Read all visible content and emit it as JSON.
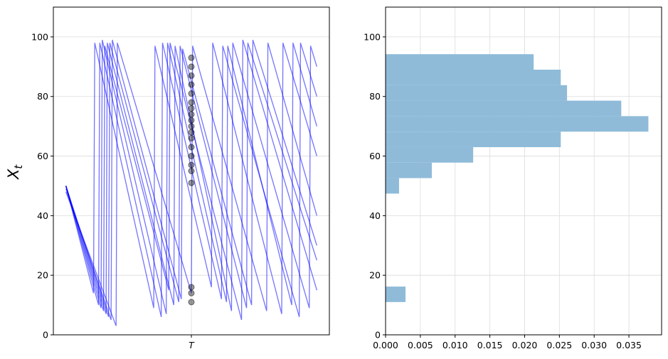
{
  "chart_data": [
    {
      "type": "line",
      "ylabel": "X",
      "ylabel_subscript": "t",
      "xlim": [
        -0.05,
        1.05
      ],
      "xticks": [
        {
          "value": 0.5,
          "label": "T"
        }
      ],
      "ylim": [
        0,
        110
      ],
      "yticks": [
        0,
        20,
        40,
        60,
        80,
        100
      ],
      "grid": true,
      "series": [
        {
          "color": "#0000ff",
          "x": [
            0,
            0.16,
            0.165,
            0.43,
            0.435,
            0.66,
            0.665,
            0.97,
            0.975,
            1.0
          ],
          "values": [
            50,
            7,
            98,
            10,
            97,
            8,
            98,
            9,
            97,
            90
          ]
        },
        {
          "color": "#0000ff",
          "x": [
            0,
            0.13,
            0.135,
            0.38,
            0.385,
            0.62,
            0.625,
            0.93,
            0.935,
            1.0
          ],
          "values": [
            50,
            10,
            98,
            6,
            98,
            12,
            97,
            6,
            98,
            80
          ]
        },
        {
          "color": "#0000ff",
          "x": [
            0,
            0.18,
            0.185,
            0.46,
            0.465,
            0.74,
            0.745,
            1.0
          ],
          "values": [
            49,
            5,
            99,
            12,
            96,
            10,
            99,
            30
          ]
        },
        {
          "color": "#0000ff",
          "x": [
            0,
            0.11,
            0.115,
            0.35,
            0.355,
            0.58,
            0.585,
            0.86,
            0.865,
            1.0
          ],
          "values": [
            50,
            14,
            98,
            9,
            97,
            16,
            98,
            7,
            98,
            60
          ]
        },
        {
          "color": "#0000ff",
          "x": [
            0,
            0.15,
            0.155,
            0.41,
            0.415,
            0.7,
            0.705,
            1.0
          ],
          "values": [
            50,
            8,
            97,
            15,
            98,
            5,
            99,
            15
          ]
        },
        {
          "color": "#0000ff",
          "x": [
            0,
            0.2,
            0.205,
            0.5,
            0.505,
            0.8,
            0.805,
            1.0
          ],
          "values": [
            48,
            3,
            98,
            14,
            97,
            8,
            98,
            40
          ]
        },
        {
          "color": "#0000ff",
          "x": [
            0,
            0.14,
            0.145,
            0.4,
            0.405,
            0.64,
            0.645,
            0.9,
            0.905,
            1.0
          ],
          "values": [
            50,
            9,
            99,
            7,
            98,
            11,
            97,
            10,
            98,
            70
          ]
        },
        {
          "color": "#0000ff",
          "x": [
            0,
            0.17,
            0.175,
            0.45,
            0.455,
            0.72,
            0.725,
            1.0
          ],
          "values": [
            50,
            6,
            98,
            11,
            97,
            9,
            98,
            25
          ]
        }
      ],
      "points": {
        "color": "#000000",
        "values": [
          11,
          14,
          16,
          51,
          55,
          57,
          60,
          63,
          66,
          68,
          70,
          72,
          74,
          76,
          78,
          81,
          84,
          87,
          90,
          93
        ]
      }
    },
    {
      "type": "histogram",
      "orientation": "horizontal",
      "color": "#8fbbd9",
      "bins": [
        11.0,
        16.2,
        21.4,
        26.6,
        31.8,
        37.0,
        42.2,
        47.4,
        52.6,
        57.8,
        63.0,
        68.2,
        73.4,
        78.6,
        83.8,
        89.0,
        94.2
      ],
      "counts": [
        0.00287,
        0,
        0,
        0,
        0,
        0,
        0,
        0.00194,
        0.00665,
        0.0126,
        0.0252,
        0.0378,
        0.0339,
        0.0261,
        0.0252,
        0.0213
      ],
      "xlim": [
        0,
        0.0397
      ],
      "xticks": [
        {
          "value": 0,
          "label": "0.000"
        },
        {
          "value": 0.005,
          "label": "0.005"
        },
        {
          "value": 0.01,
          "label": "0.010"
        },
        {
          "value": 0.015,
          "label": "0.015"
        },
        {
          "value": 0.02,
          "label": "0.020"
        },
        {
          "value": 0.025,
          "label": "0.025"
        },
        {
          "value": 0.03,
          "label": "0.030"
        },
        {
          "value": 0.035,
          "label": "0.035"
        }
      ],
      "ylim": [
        0,
        110
      ],
      "yticks": [
        0,
        20,
        40,
        60,
        80,
        100
      ],
      "grid": true
    }
  ]
}
